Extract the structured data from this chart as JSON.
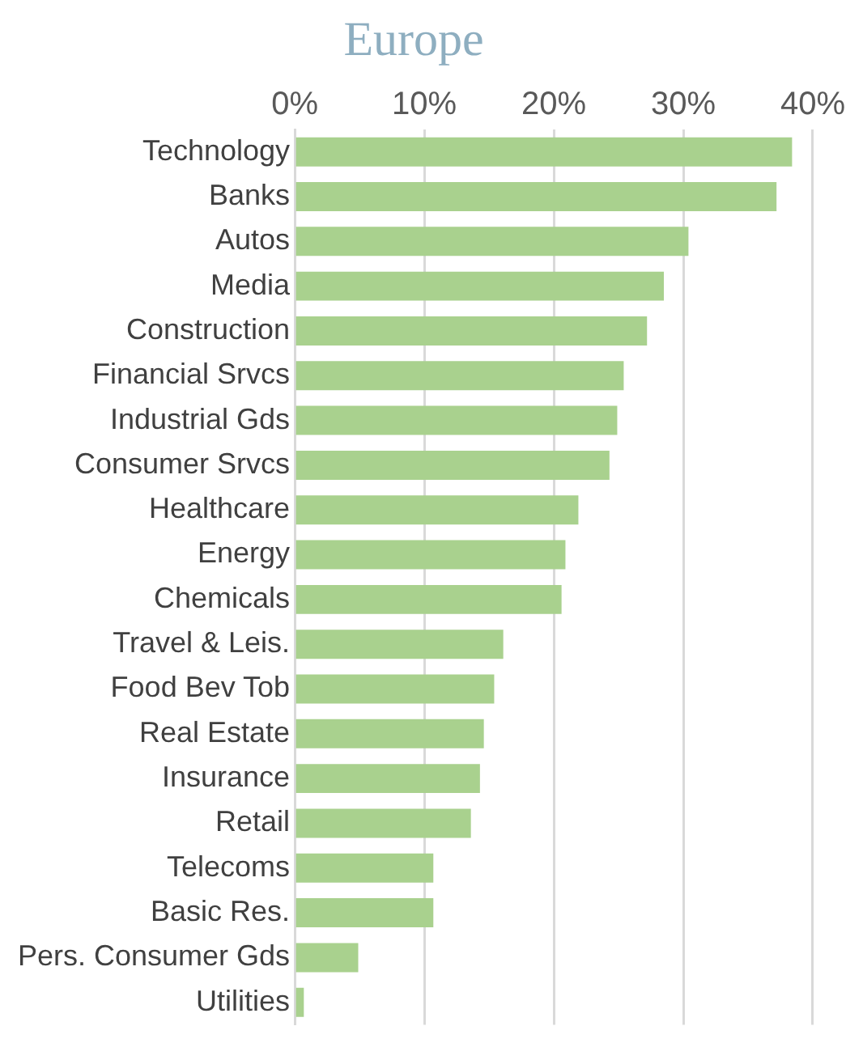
{
  "chart_data": {
    "type": "bar",
    "title": "Europe",
    "orientation": "horizontal",
    "categories": [
      "Technology",
      "Banks",
      "Autos",
      "Media",
      "Construction",
      "Financial Srvcs",
      "Industrial Gds",
      "Consumer Srvcs",
      "Healthcare",
      "Energy",
      "Chemicals",
      "Travel & Leis.",
      "Food Bev Tob",
      "Real Estate",
      "Insurance",
      "Retail",
      "Telecoms",
      "Basic Res.",
      "Pers. Consumer Gds",
      "Utilities"
    ],
    "values": [
      38.4,
      37.2,
      30.4,
      28.5,
      27.2,
      25.4,
      24.9,
      24.3,
      21.9,
      20.9,
      20.6,
      16.1,
      15.4,
      14.6,
      14.3,
      13.6,
      10.7,
      10.7,
      4.9,
      0.7
    ],
    "color": "#a9d18e",
    "xlim": [
      0,
      40
    ],
    "xticks": [
      {
        "value": 0,
        "label": "0%"
      },
      {
        "value": 10,
        "label": "10%"
      },
      {
        "value": 20,
        "label": "20%"
      },
      {
        "value": 30,
        "label": "30%"
      },
      {
        "value": 40,
        "label": "40%"
      }
    ],
    "grid": "x",
    "legend": false
  }
}
